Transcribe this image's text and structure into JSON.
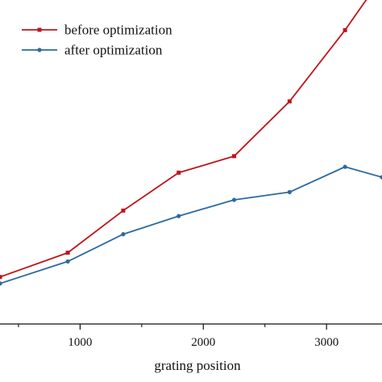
{
  "chart_data": {
    "type": "line",
    "xlabel": "grating position",
    "ylabel": "",
    "xlim": [
      350,
      3450
    ],
    "ylim": [
      0,
      100
    ],
    "xticks": [
      1000,
      2000,
      3000
    ],
    "xtick_labels": [
      "1000",
      "2000",
      "3000"
    ],
    "legend": {
      "placement": "top-left"
    },
    "series": [
      {
        "name": "before optimization",
        "color": "#c0141c",
        "marker": "square",
        "x": [
          350,
          900,
          1350,
          1800,
          2250,
          2700,
          3150,
          3450
        ],
        "y": [
          14.5,
          22,
          35,
          46.7,
          51.8,
          68.7,
          90.7,
          107
        ]
      },
      {
        "name": "after optimization",
        "color": "#2b6aa0",
        "marker": "circle",
        "x": [
          350,
          900,
          1350,
          1800,
          2250,
          2700,
          3150,
          3450
        ],
        "y": [
          12.5,
          19.3,
          27.7,
          33.3,
          38.3,
          40.7,
          48.5,
          45.3
        ]
      }
    ]
  }
}
